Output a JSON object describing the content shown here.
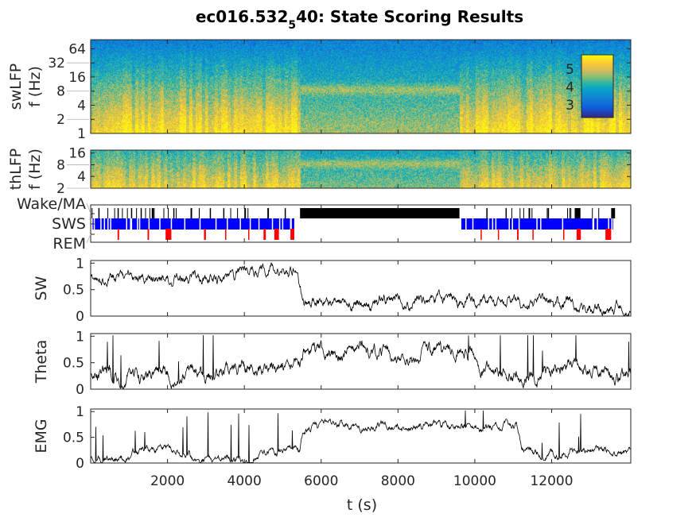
{
  "chart_data": {
    "type": "line",
    "title": "ec016.532",
    "title_subscript": "5",
    "title_suffix": "40: State Scoring Results",
    "xlabel": "t (s)",
    "xlim": [
      0,
      14060
    ],
    "xticks": [
      "2000",
      "4000",
      "6000",
      "8000",
      "10000",
      "12000"
    ],
    "xtick_values": [
      2000,
      4000,
      6000,
      8000,
      10000,
      12000
    ],
    "colors": {
      "Wake": "#000000",
      "SWS": "#0000ff",
      "REM": "#ff0000",
      "trace": "#000000"
    },
    "panels": {
      "swLFP": {
        "ylabel1": "swLFP",
        "ylabel2": "f (Hz)",
        "yscale": "log2",
        "ylim": [
          1,
          100
        ],
        "yticks": [
          "1",
          "2",
          "4",
          "8",
          "16",
          "32",
          "64"
        ],
        "ytick_values": [
          1,
          2,
          4,
          8,
          16,
          32,
          64
        ],
        "colorbar": {
          "ticks": [
            "3",
            "4",
            "5"
          ],
          "tick_values": [
            3,
            4,
            5
          ],
          "clim": [
            2.3,
            5.8
          ]
        }
      },
      "thLFP": {
        "ylabel1": "thLFP",
        "ylabel2": "f (Hz)",
        "yscale": "log2",
        "ylim": [
          2,
          19
        ],
        "yticks": [
          "2",
          "4",
          "8",
          "16"
        ],
        "ytick_values": [
          2,
          4,
          8,
          16
        ]
      },
      "states": {
        "yticks": [
          "Wake/MA",
          "SWS",
          "REM"
        ],
        "wake_epochs": [
          [
            5450,
            9600
          ],
          [
            200,
            230
          ],
          [
            700,
            720
          ],
          [
            1050,
            1080
          ],
          [
            1300,
            1330
          ],
          [
            1600,
            1640
          ],
          [
            2150,
            2180
          ],
          [
            2600,
            2640
          ],
          [
            3100,
            3130
          ],
          [
            3450,
            3480
          ],
          [
            4000,
            4030
          ],
          [
            4600,
            4640
          ],
          [
            5050,
            5080
          ],
          [
            10300,
            10330
          ],
          [
            10800,
            10830
          ],
          [
            11400,
            11440
          ],
          [
            11900,
            11930
          ],
          [
            12600,
            12750
          ],
          [
            13550,
            13650
          ]
        ],
        "sws_epochs": [
          [
            50,
            5300
          ],
          [
            9650,
            13600
          ]
        ],
        "rem_epochs": [
          [
            700,
            740
          ],
          [
            1480,
            1520
          ],
          [
            1950,
            2100
          ],
          [
            2950,
            3000
          ],
          [
            3500,
            3530
          ],
          [
            4100,
            4130
          ],
          [
            4500,
            4560
          ],
          [
            4780,
            4900
          ],
          [
            5200,
            5300
          ],
          [
            10150,
            10180
          ],
          [
            10600,
            10630
          ],
          [
            11100,
            11140
          ],
          [
            11500,
            11530
          ],
          [
            12300,
            12330
          ],
          [
            12650,
            12760
          ],
          [
            13400,
            13550
          ]
        ]
      },
      "SW": {
        "ylabel": "SW",
        "ylim": [
          0,
          1.05
        ],
        "yticks": [
          "0",
          "0.5",
          "1"
        ],
        "ytick_values": [
          0,
          0.5,
          1
        ],
        "level_sleep": 0.72,
        "level_wake": 0.27
      },
      "Theta": {
        "ylabel": "Theta",
        "ylim": [
          0,
          1.05
        ],
        "yticks": [
          "0",
          "0.5",
          "1"
        ],
        "ytick_values": [
          0,
          0.5,
          1
        ],
        "level_sleep": 0.28,
        "level_wake": 0.72
      },
      "EMG": {
        "ylabel": "EMG",
        "ylim": [
          0,
          1.05
        ],
        "yticks": [
          "0",
          "0.5",
          "1"
        ],
        "ytick_values": [
          0,
          0.5,
          1
        ],
        "level_sleep": 0.1,
        "level_wake": 0.72
      }
    }
  }
}
